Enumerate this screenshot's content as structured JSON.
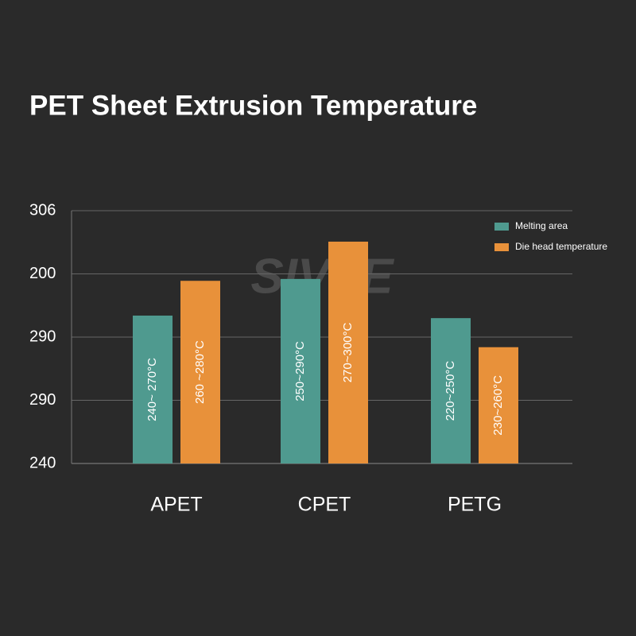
{
  "chart_data": {
    "type": "bar",
    "title": "PET Sheet Extrusion Temperature",
    "watermark": "SIVTE",
    "categories": [
      "APET",
      "CPET",
      "PETG"
    ],
    "ylim": [
      0,
      4
    ],
    "yticks": [
      {
        "value": 0,
        "label": "240"
      },
      {
        "value": 1,
        "label": "290"
      },
      {
        "value": 2,
        "label": "290"
      },
      {
        "value": 3,
        "label": "200"
      },
      {
        "value": 4,
        "label": "306"
      }
    ],
    "grid": true,
    "legend": "top-right",
    "series": [
      {
        "name": "Melting area",
        "color": "#4f9a8f",
        "values": [
          2.34,
          2.92,
          2.3
        ],
        "labels": [
          "240~ 270°C",
          "250~290°C",
          "220~250°C"
        ]
      },
      {
        "name": "Die head temperature",
        "color": "#e8913a",
        "values": [
          2.89,
          3.51,
          1.84
        ],
        "labels": [
          "260 ~280°C",
          "270~300°C",
          "230~260°C"
        ]
      }
    ]
  }
}
